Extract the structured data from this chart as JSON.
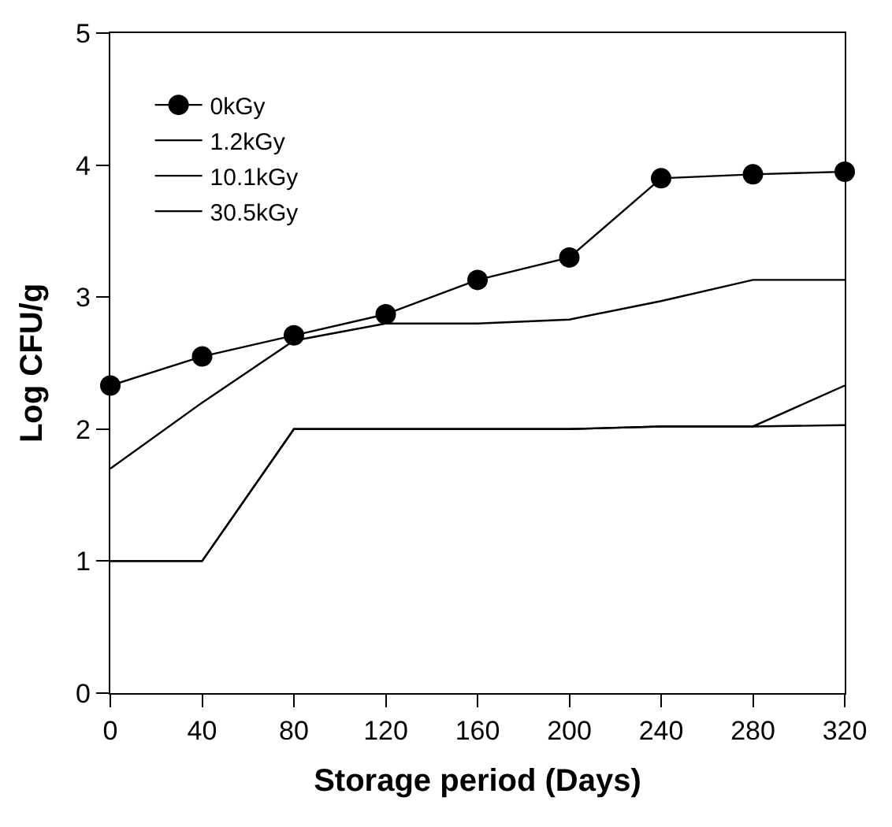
{
  "chart_data": {
    "type": "line",
    "xlabel": "Storage period (Days)",
    "ylabel": "Log CFU/g",
    "x": [
      0,
      40,
      80,
      120,
      160,
      200,
      240,
      280,
      320
    ],
    "xlim": [
      0,
      320
    ],
    "xticks": [
      0,
      40,
      80,
      120,
      160,
      200,
      240,
      280,
      320
    ],
    "ylim": [
      0,
      5
    ],
    "yticks": [
      0,
      1,
      2,
      3,
      4,
      5
    ],
    "legend": "top left",
    "series": [
      {
        "name": "0kGy",
        "color": "#000000",
        "marker": "circle",
        "values": [
          2.33,
          2.55,
          2.71,
          2.87,
          3.13,
          3.3,
          3.9,
          3.93,
          3.95
        ]
      },
      {
        "name": "1.2kGy",
        "color": "#000000",
        "marker": "none",
        "values": [
          1.7,
          2.2,
          2.67,
          2.8,
          2.8,
          2.83,
          2.97,
          3.13,
          3.13
        ]
      },
      {
        "name": "10.1kGy",
        "color": "#000000",
        "marker": "none",
        "values": [
          1.0,
          1.0,
          2.0,
          2.0,
          2.0,
          2.0,
          2.02,
          2.02,
          2.33
        ]
      },
      {
        "name": "30.5kGy",
        "color": "#000000",
        "marker": "none",
        "values": [
          1.0,
          1.0,
          2.0,
          2.0,
          2.0,
          2.0,
          2.02,
          2.02,
          2.03
        ]
      }
    ]
  }
}
